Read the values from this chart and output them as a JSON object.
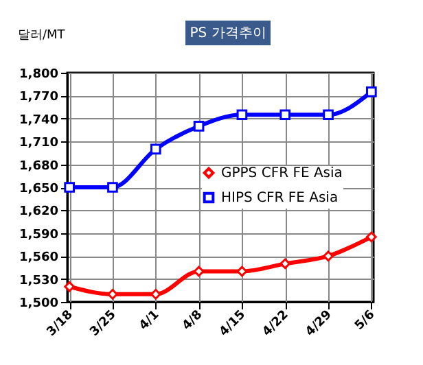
{
  "chart_data": {
    "type": "line",
    "title": "PS 가격추이",
    "ylabel": "달러/MT",
    "categories": [
      "3/18",
      "3/25",
      "4/1",
      "4/8",
      "4/15",
      "4/22",
      "4/29",
      "5/6"
    ],
    "series": [
      {
        "name": "GPPS CFR FE Asia",
        "color": "#ff0000",
        "marker": "diamond",
        "values": [
          1520,
          1510,
          1510,
          1540,
          1540,
          1550,
          1560,
          1585
        ]
      },
      {
        "name": "HIPS CFR FE Asia",
        "color": "#0000ff",
        "marker": "square",
        "values": [
          1650,
          1650,
          1700,
          1730,
          1745,
          1745,
          1745,
          1775
        ]
      }
    ],
    "ylim": [
      1500,
      1800
    ],
    "yticks": [
      {
        "value": 1500,
        "label": "1,500"
      },
      {
        "value": 1530,
        "label": "1,530"
      },
      {
        "value": 1560,
        "label": "1,560"
      },
      {
        "value": 1590,
        "label": "1,590"
      },
      {
        "value": 1620,
        "label": "1,620"
      },
      {
        "value": 1650,
        "label": "1,650"
      },
      {
        "value": 1680,
        "label": "1,680"
      },
      {
        "value": 1710,
        "label": "1,710"
      },
      {
        "value": 1740,
        "label": "1,740"
      },
      {
        "value": 1770,
        "label": "1,770"
      },
      {
        "value": 1800,
        "label": "1,800"
      }
    ],
    "grid": true,
    "legend": "right",
    "line_style": "solid"
  }
}
